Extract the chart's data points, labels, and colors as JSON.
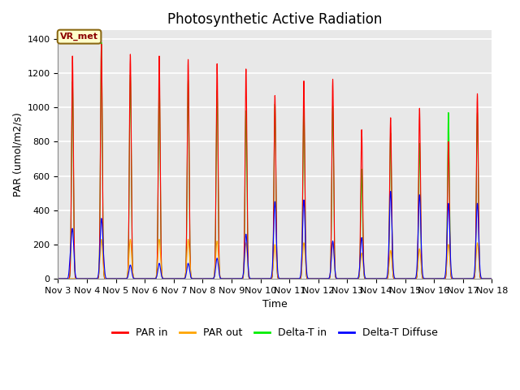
{
  "title": "Photosynthetic Active Radiation",
  "ylabel": "PAR (umol/m2/s)",
  "xlabel": "Time",
  "annotation": "VR_met",
  "ylim": [
    0,
    1450
  ],
  "xlim": [
    0,
    15
  ],
  "xtick_labels": [
    "Nov 3",
    "Nov 4",
    "Nov 5",
    "Nov 6",
    "Nov 7",
    "Nov 8",
    "Nov 9",
    "Nov 10",
    "Nov 11",
    "Nov 12",
    "Nov 13",
    "Nov 14",
    "Nov 15",
    "Nov 16",
    "Nov 17",
    "Nov 18"
  ],
  "colors": {
    "PAR_in": "#FF0000",
    "PAR_out": "#FFA500",
    "Delta_T_in": "#00EE00",
    "Delta_T_Diffuse": "#0000FF"
  },
  "legend_labels": [
    "PAR in",
    "PAR out",
    "Delta-T in",
    "Delta-T Diffuse"
  ],
  "bg_color": "#E8E8E8",
  "title_fontsize": 12,
  "axis_fontsize": 9,
  "tick_fontsize": 8,
  "par_in_peaks": [
    1300,
    1370,
    1310,
    1300,
    1280,
    1255,
    1225,
    1070,
    1155,
    1165,
    870,
    940,
    995,
    800,
    1080
  ],
  "par_out_peaks": [
    0,
    230,
    230,
    230,
    230,
    220,
    210,
    200,
    210,
    215,
    150,
    165,
    175,
    200,
    210
  ],
  "delta_t_in_peaks": [
    1150,
    1380,
    1190,
    1170,
    1160,
    1100,
    980,
    1020,
    1020,
    1010,
    640,
    850,
    790,
    970,
    970
  ],
  "delta_t_diff_peaks": [
    290,
    350,
    80,
    90,
    90,
    120,
    260,
    450,
    460,
    220,
    240,
    510,
    490,
    440,
    440
  ],
  "par_in_widths": [
    0.04,
    0.04,
    0.04,
    0.04,
    0.04,
    0.04,
    0.04,
    0.04,
    0.04,
    0.04,
    0.04,
    0.04,
    0.04,
    0.04,
    0.04
  ],
  "par_out_widths": [
    0.04,
    0.05,
    0.05,
    0.05,
    0.05,
    0.05,
    0.05,
    0.05,
    0.05,
    0.05,
    0.04,
    0.04,
    0.04,
    0.04,
    0.04
  ],
  "green_widths": [
    0.04,
    0.04,
    0.04,
    0.04,
    0.04,
    0.04,
    0.04,
    0.04,
    0.04,
    0.04,
    0.04,
    0.04,
    0.04,
    0.04,
    0.04
  ],
  "blue_widths": [
    0.04,
    0.04,
    0.03,
    0.03,
    0.03,
    0.04,
    0.05,
    0.05,
    0.05,
    0.05,
    0.04,
    0.05,
    0.05,
    0.05,
    0.05
  ]
}
